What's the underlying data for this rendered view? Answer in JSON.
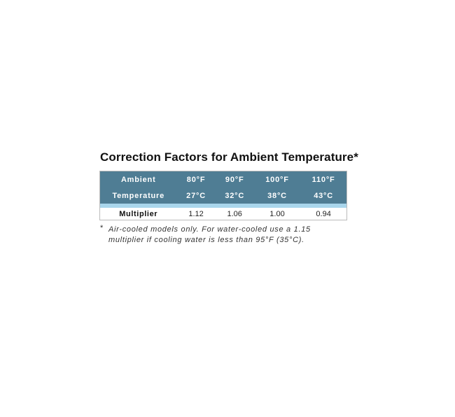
{
  "title": "Correction Factors for Ambient Temperature*",
  "table": {
    "header_row1": [
      "Ambient",
      "80°F",
      "90°F",
      "100°F",
      "110°F"
    ],
    "header_row2": [
      "Temperature",
      "27°C",
      "32°C",
      "38°C",
      "43°C"
    ],
    "data_row": [
      "Multiplier",
      "1.12",
      "1.06",
      "1.00",
      "0.94"
    ]
  },
  "footnote": {
    "marker": "*",
    "line1": "Air-cooled models only. For water-cooled use a 1.15",
    "line2": "multiplier if cooling water is less than 95°F (35°C)."
  },
  "colors": {
    "header_bg": "#4f7d94",
    "strip": "#a9d6ec"
  }
}
